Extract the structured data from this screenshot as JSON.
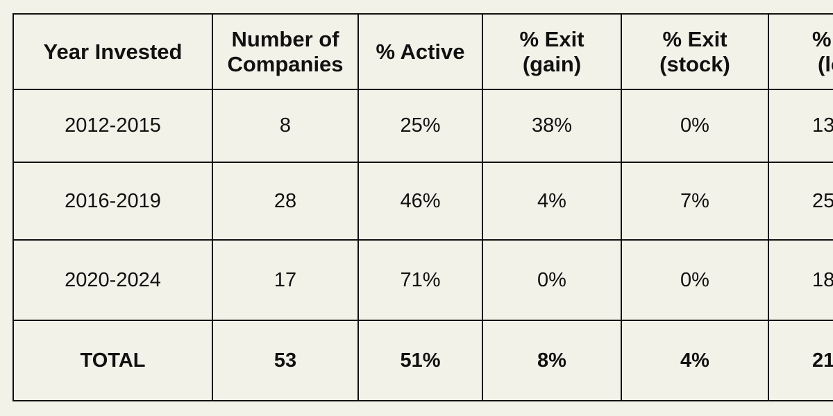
{
  "table": {
    "headers": [
      [
        "Year Invested"
      ],
      [
        "Number of",
        "Companies"
      ],
      [
        "% Active"
      ],
      [
        "% Exit",
        "(gain)"
      ],
      [
        "% Exit",
        "(stock)"
      ],
      [
        "% E",
        "(lo"
      ]
    ],
    "rows": [
      [
        "2012-2015",
        "8",
        "25%",
        "38%",
        "0%",
        "13"
      ],
      [
        "2016-2019",
        "28",
        "46%",
        "4%",
        "7%",
        "25"
      ],
      [
        "2020-2024",
        "17",
        "71%",
        "0%",
        "0%",
        "18"
      ]
    ],
    "total": [
      "TOTAL",
      "53",
      "51%",
      "8%",
      "4%",
      "21"
    ]
  }
}
